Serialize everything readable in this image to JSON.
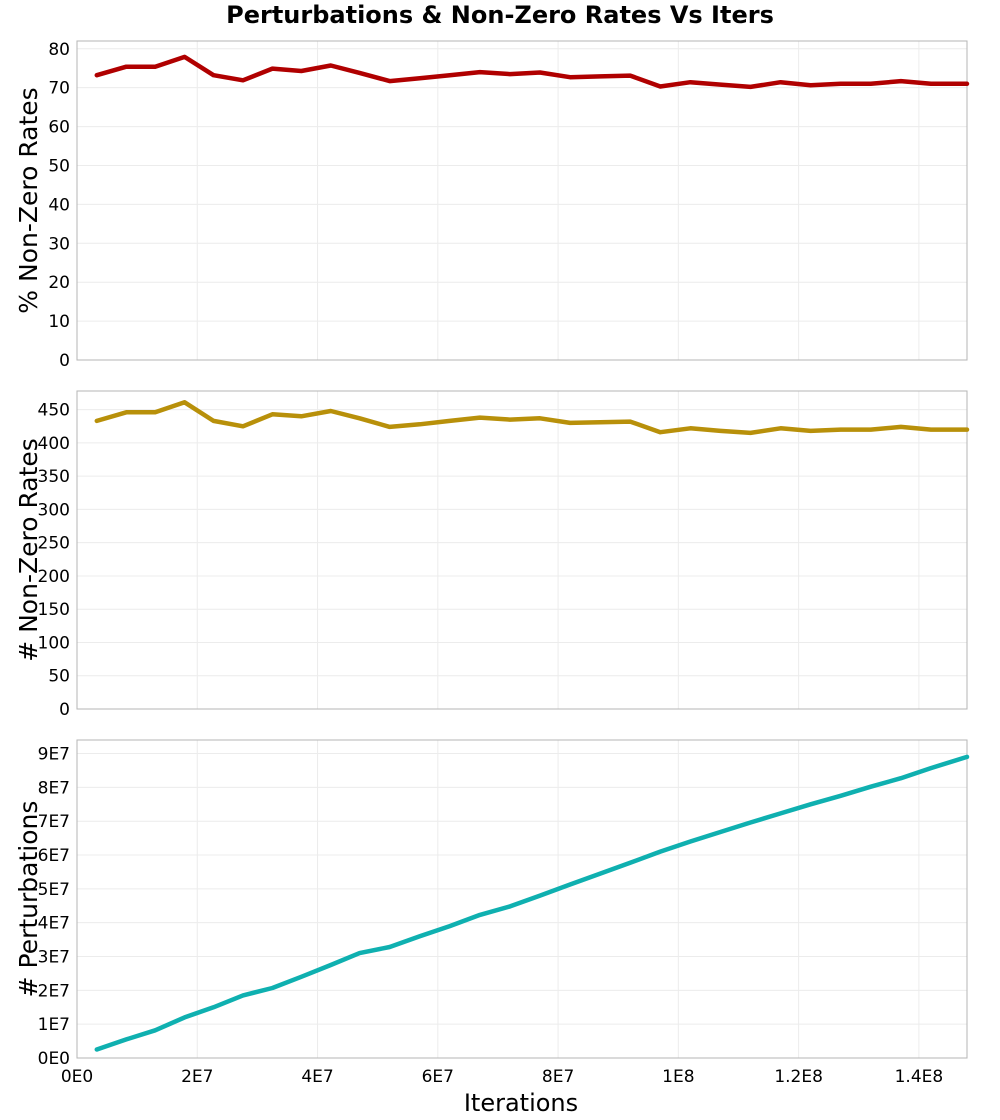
{
  "title": "Perturbations & Non-Zero Rates Vs Iters",
  "xlabel": "Iterations",
  "x_tick_labels": [
    "0E0",
    "2E7",
    "4E7",
    "6E7",
    "8E7",
    "1E8",
    "1.2E8",
    "1.4E8"
  ],
  "chart_data": [
    {
      "type": "line",
      "ylabel": "% Non-Zero Rates",
      "xlim": [
        0,
        148000000
      ],
      "ylim": [
        0,
        82
      ],
      "y_ticks": [
        0,
        10,
        20,
        30,
        40,
        50,
        60,
        70,
        80
      ],
      "y_tick_labels": [
        "0",
        "10",
        "20",
        "30",
        "40",
        "50",
        "60",
        "70",
        "80"
      ],
      "grid": true,
      "color": "#b00000",
      "x": [
        3300000,
        8200000,
        13000000,
        17900000,
        22700000,
        27600000,
        32500000,
        37300000,
        42200000,
        47000000,
        52000000,
        57000000,
        62000000,
        67000000,
        72000000,
        77000000,
        82000000,
        87000000,
        92000000,
        97000000,
        102000000,
        107000000,
        112000000,
        117000000,
        122000000,
        127000000,
        132000000,
        137000000,
        142000000,
        148000000
      ],
      "values": [
        73.2,
        75.4,
        75.4,
        77.9,
        73.2,
        71.9,
        74.9,
        74.3,
        75.7,
        73.8,
        71.7,
        72.4,
        73.2,
        74.0,
        73.5,
        73.9,
        72.7,
        72.9,
        73.1,
        70.3,
        71.4,
        70.8,
        70.2,
        71.4,
        70.6,
        71.0,
        71.0,
        71.7,
        71.0,
        71.0
      ]
    },
    {
      "type": "line",
      "ylabel": "# Non-Zero Rates",
      "xlim": [
        0,
        148000000
      ],
      "ylim": [
        0,
        478
      ],
      "y_ticks": [
        0,
        50,
        100,
        150,
        200,
        250,
        300,
        350,
        400,
        450
      ],
      "y_tick_labels": [
        "0",
        "50",
        "100",
        "150",
        "200",
        "250",
        "300",
        "350",
        "400",
        "450"
      ],
      "grid": true,
      "color": "#b8900a",
      "x": [
        3300000,
        8200000,
        13000000,
        17900000,
        22700000,
        27600000,
        32500000,
        37300000,
        42200000,
        47000000,
        52000000,
        57000000,
        62000000,
        67000000,
        72000000,
        77000000,
        82000000,
        87000000,
        92000000,
        97000000,
        102000000,
        107000000,
        112000000,
        117000000,
        122000000,
        127000000,
        132000000,
        137000000,
        142000000,
        148000000
      ],
      "values": [
        433,
        446,
        446,
        461,
        433,
        425,
        443,
        440,
        448,
        437,
        424,
        428,
        433,
        438,
        435,
        437,
        430,
        431,
        432,
        416,
        422,
        418,
        415,
        422,
        418,
        420,
        420,
        424,
        420,
        420
      ]
    },
    {
      "type": "line",
      "ylabel": "# Perturbations",
      "xlim": [
        0,
        148000000
      ],
      "ylim": [
        0,
        94000000
      ],
      "y_ticks": [
        0,
        10000000,
        20000000,
        30000000,
        40000000,
        50000000,
        60000000,
        70000000,
        80000000,
        90000000
      ],
      "y_tick_labels": [
        "0E0",
        "1E7",
        "2E7",
        "3E7",
        "4E7",
        "5E7",
        "6E7",
        "7E7",
        "8E7",
        "9E7"
      ],
      "grid": true,
      "color": "#0fb0b0",
      "x": [
        3300000,
        8200000,
        13000000,
        17900000,
        22700000,
        27600000,
        32500000,
        37300000,
        42200000,
        47000000,
        52000000,
        57000000,
        62000000,
        67000000,
        72000000,
        77000000,
        82000000,
        87000000,
        92000000,
        97000000,
        102000000,
        107000000,
        112000000,
        117000000,
        122000000,
        127000000,
        132000000,
        137000000,
        142000000,
        148000000
      ],
      "values": [
        2500000,
        5500000,
        8200000,
        12000000,
        15000000,
        18500000,
        20700000,
        24000000,
        27500000,
        31000000,
        32800000,
        36000000,
        39000000,
        42300000,
        44800000,
        48000000,
        51300000,
        54500000,
        57700000,
        61000000,
        64000000,
        66800000,
        69600000,
        72300000,
        75000000,
        77500000,
        80200000,
        82700000,
        85700000,
        89000000
      ]
    }
  ]
}
